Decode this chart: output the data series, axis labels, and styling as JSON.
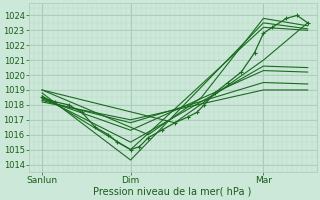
{
  "xlabel": "Pression niveau de la mer( hPa )",
  "bg_color": "#cce8d8",
  "grid_color_major": "#aaccb8",
  "grid_color_minor": "#bcd8c8",
  "line_color": "#1a6b20",
  "ylim": [
    1013.5,
    1024.8
  ],
  "yticks": [
    1014,
    1015,
    1016,
    1017,
    1018,
    1019,
    1020,
    1021,
    1022,
    1023,
    1024
  ],
  "xtick_labels": [
    "Sanlun",
    "Dim",
    "Mar"
  ],
  "xtick_positions": [
    0.0,
    1.0,
    2.5
  ],
  "xlim": [
    -0.15,
    3.1
  ],
  "lines": [
    {
      "x": [
        0.0,
        1.0,
        2.5,
        3.0
      ],
      "y": [
        1018.8,
        1014.3,
        1023.5,
        1023.1
      ]
    },
    {
      "x": [
        0.0,
        1.0,
        2.5,
        3.0
      ],
      "y": [
        1018.6,
        1015.0,
        1023.2,
        1023.0
      ]
    },
    {
      "x": [
        0.0,
        1.0,
        2.5,
        3.0
      ],
      "y": [
        1018.5,
        1015.5,
        1020.6,
        1020.5
      ]
    },
    {
      "x": [
        0.0,
        1.0,
        2.5,
        3.0
      ],
      "y": [
        1018.4,
        1016.3,
        1020.3,
        1020.2
      ]
    },
    {
      "x": [
        0.0,
        1.0,
        2.5,
        3.0
      ],
      "y": [
        1018.3,
        1016.8,
        1019.5,
        1019.4
      ]
    },
    {
      "x": [
        0.0,
        1.0,
        2.5,
        3.0
      ],
      "y": [
        1018.2,
        1017.0,
        1019.0,
        1019.0
      ]
    },
    {
      "x": [
        0.0,
        1.5,
        2.5,
        3.0
      ],
      "y": [
        1019.0,
        1016.8,
        1021.0,
        1023.5
      ]
    },
    {
      "x": [
        0.0,
        1.2,
        1.8,
        2.5,
        3.0
      ],
      "y": [
        1019.0,
        1016.0,
        1018.5,
        1023.8,
        1023.3
      ]
    }
  ],
  "det_line": {
    "x": [
      0.0,
      0.15,
      0.3,
      0.45,
      0.6,
      0.75,
      0.85,
      1.0,
      1.1,
      1.2,
      1.35,
      1.5,
      1.65,
      1.75,
      1.83,
      1.95,
      2.1,
      2.25,
      2.4,
      2.5,
      2.6,
      2.76,
      2.88,
      3.0
    ],
    "y": [
      1018.5,
      1018.2,
      1018.0,
      1017.5,
      1016.5,
      1016.0,
      1015.5,
      1015.0,
      1015.2,
      1015.8,
      1016.3,
      1016.8,
      1017.2,
      1017.5,
      1018.0,
      1018.8,
      1019.5,
      1020.2,
      1021.5,
      1022.8,
      1023.2,
      1023.8,
      1024.0,
      1023.5
    ]
  }
}
